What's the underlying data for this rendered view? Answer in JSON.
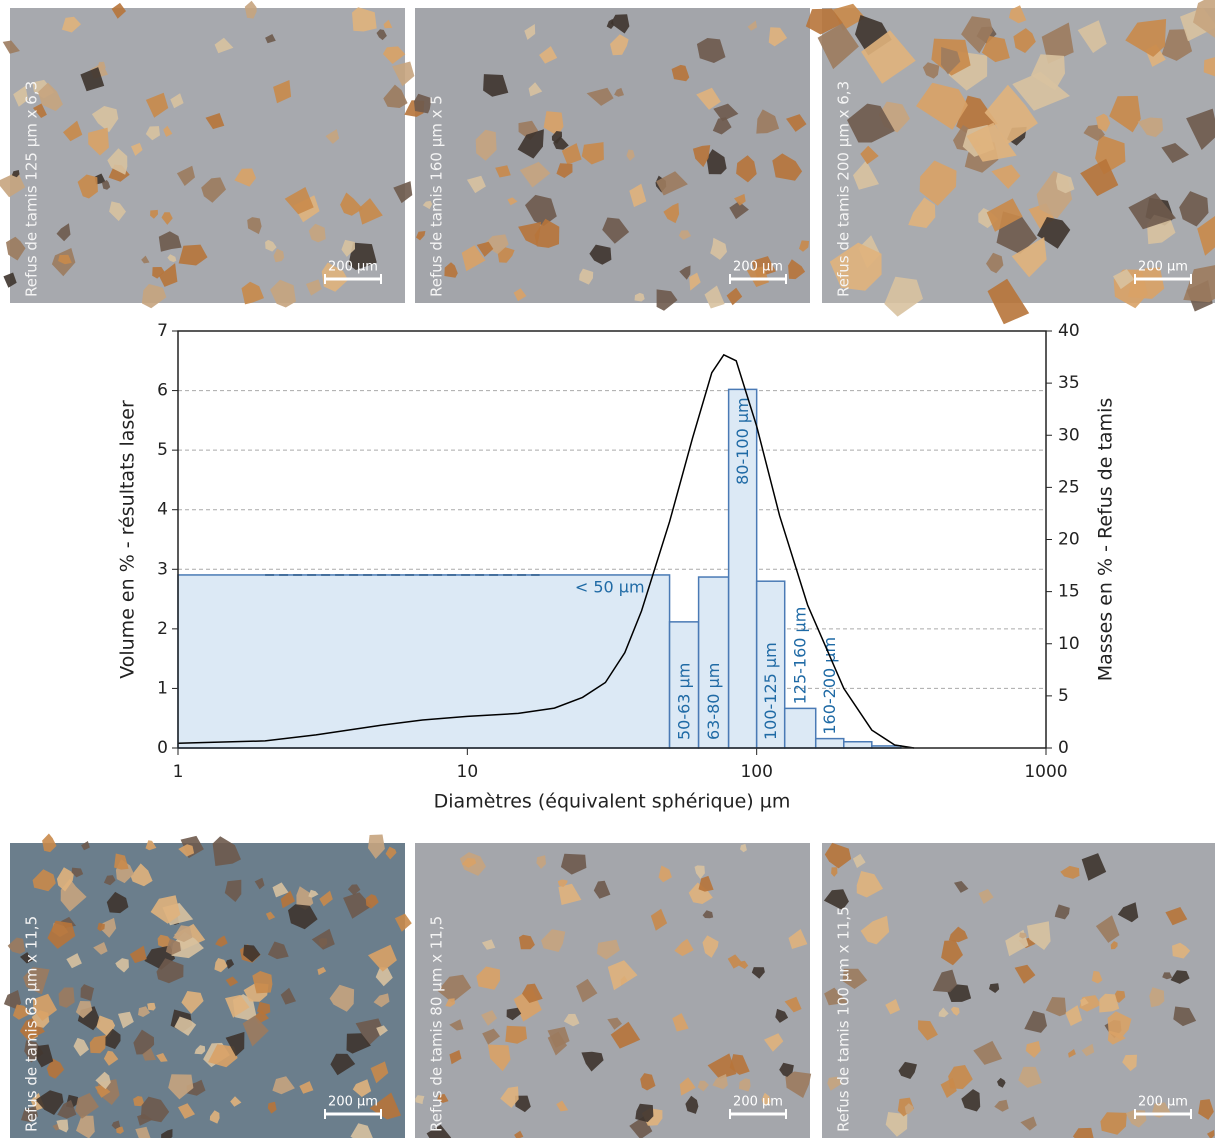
{
  "chart_data": {
    "type": "combo",
    "xlabel": "Diamètres (équivalent sphérique) µm",
    "ylabel": "Volume en % - résultats laser",
    "y2label": "Masses en % - Refus de tamis",
    "xscale": "log",
    "xlim": [
      1,
      1000
    ],
    "xticks": [
      1,
      10,
      100,
      1000
    ],
    "ylim": [
      0,
      7
    ],
    "yticks": [
      0,
      1,
      2,
      3,
      4,
      5,
      6,
      7
    ],
    "y2lim": [
      0,
      40
    ],
    "y2ticks": [
      0,
      5,
      10,
      15,
      20,
      25,
      30,
      35,
      40
    ],
    "grid": true,
    "series": [
      {
        "type": "histogram",
        "axis": "y2",
        "color": "#dce9f5",
        "bins": [
          1,
          50,
          63,
          80,
          100,
          125,
          160,
          200,
          250,
          315
        ],
        "categories": [
          "< 50 µm",
          "50-63 µm",
          "63-80 µm",
          "80-100 µm",
          "100-125 µm",
          "125-160 µm",
          "160-200 µm",
          null,
          null
        ],
        "values": [
          16.6,
          12.1,
          16.4,
          34.4,
          16.0,
          3.8,
          0.9,
          0.6,
          0.2
        ]
      },
      {
        "type": "line",
        "axis": "y",
        "color": "#000000",
        "x": [
          1,
          2,
          3,
          5,
          7,
          10,
          15,
          20,
          25,
          30,
          35,
          40,
          50,
          60,
          70,
          77,
          85,
          100,
          120,
          150,
          200,
          250,
          300,
          350
        ],
        "values": [
          0.08,
          0.12,
          0.22,
          0.38,
          0.47,
          0.53,
          0.58,
          0.67,
          0.85,
          1.1,
          1.6,
          2.3,
          3.8,
          5.2,
          6.3,
          6.6,
          6.5,
          5.4,
          3.9,
          2.4,
          1.0,
          0.3,
          0.05,
          0
        ]
      }
    ]
  },
  "photos": [
    {
      "label": "Refus de tamis 125 µm x 6,3",
      "scale": "200 µm"
    },
    {
      "label": "Refus de tamis 160 µm x 5",
      "scale": "200 µm"
    },
    {
      "label": "Refus de tamis 200 µm x 6,3",
      "scale": "200 µm"
    },
    {
      "label": "Refus de tamis 63 µm x 11,5",
      "scale": "200 µm"
    },
    {
      "label": "Refus de tamis 80 µm x 11,5",
      "scale": "200 µm"
    },
    {
      "label": "Refus de tamis 100 µm x 11,5",
      "scale": "200 µm"
    }
  ]
}
